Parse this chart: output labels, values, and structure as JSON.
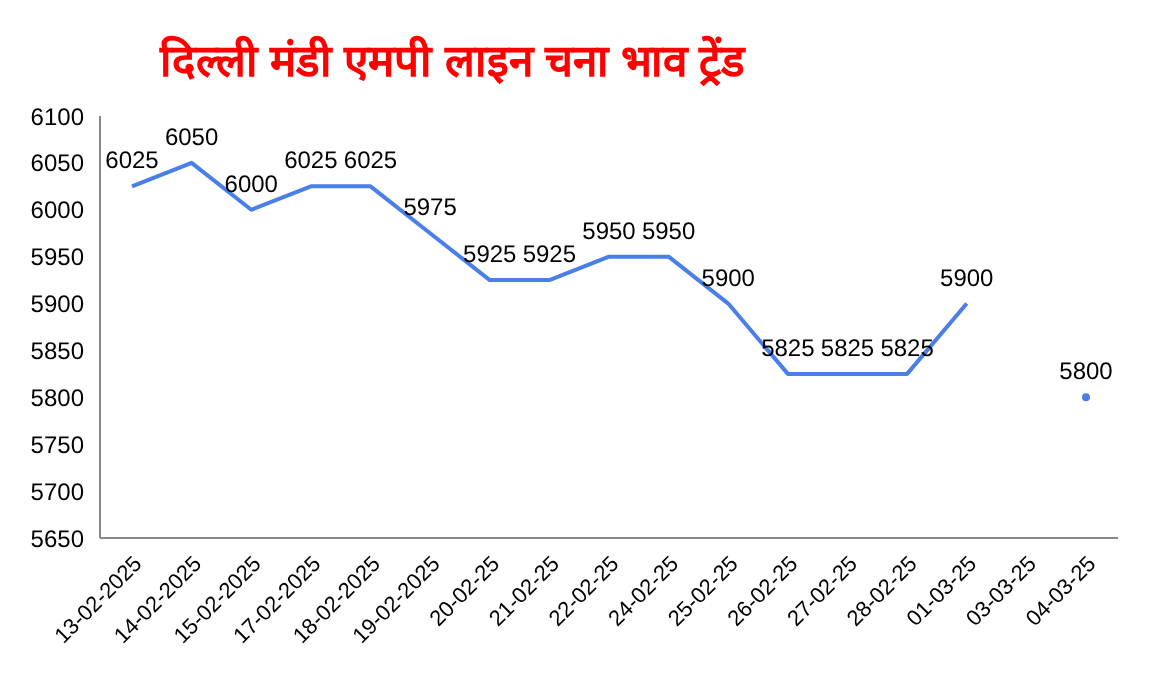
{
  "chart_data": {
    "type": "line",
    "title": "दिल्ली मंडी एमपी लाइन चना भाव ट्रेंड",
    "categories": [
      "13-02-2025",
      "14-02-2025",
      "15-02-2025",
      "17-02-2025",
      "18-02-2025",
      "19-02-2025",
      "20-02-25",
      "21-02-25",
      "22-02-25",
      "24-02-25",
      "25-02-25",
      "26-02-25",
      "27-02-25",
      "28-02-25",
      "01-03-25",
      "03-03-25",
      "04-03-25"
    ],
    "series": [
      {
        "color": "#4a7ee8",
        "values": [
          6025,
          6050,
          6000,
          6025,
          6025,
          5975,
          5925,
          5925,
          5950,
          5950,
          5900,
          5825,
          5825,
          5825,
          5900,
          null,
          5800
        ]
      }
    ],
    "ylim": [
      5650,
      6100
    ],
    "yticks": [
      5650,
      5700,
      5750,
      5800,
      5850,
      5900,
      5950,
      6000,
      6050,
      6100
    ],
    "data_labels": true,
    "grid": false,
    "legend": false,
    "marker": "none",
    "line_style": "solid"
  }
}
